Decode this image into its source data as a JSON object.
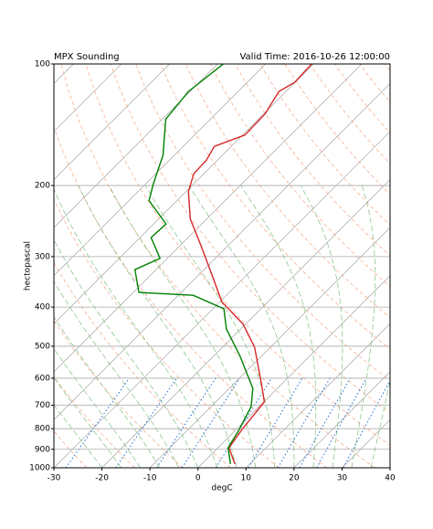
{
  "chart_data": {
    "type": "skewt",
    "title": "MPX Sounding",
    "subtitle": "Valid Time: 2016-10-26 12:00:00",
    "xlabel": "degC",
    "ylabel": "hectopascal",
    "xlim": [
      -30,
      40
    ],
    "xticks": [
      -30,
      -20,
      -10,
      0,
      10,
      20,
      30,
      40
    ],
    "ylim": [
      1000,
      100
    ],
    "yticks": [
      100,
      200,
      300,
      400,
      500,
      600,
      700,
      800,
      900,
      1000
    ],
    "log_y": true,
    "grid": true,
    "series": [
      {
        "color": "#d62728",
        "pressure": [
          979,
          892,
          803,
          687,
          619,
          503,
          441,
          388,
          332,
          283,
          242,
          207,
          187,
          173,
          160,
          150,
          133,
          117,
          111,
          100
        ],
        "values": [
          6.9,
          2.3,
          1.2,
          0.1,
          -4.3,
          -13.3,
          -20.5,
          -29.6,
          -37.4,
          -45.4,
          -53.4,
          -59.5,
          -62.1,
          -62.3,
          -63.5,
          -59.5,
          -59.7,
          -61.5,
          -60.1,
          -60.4
        ]
      },
      {
        "color": "#008000",
        "pressure": [
          979,
          892,
          803,
          705,
          636,
          530,
          453,
          404,
          374,
          368,
          323,
          303,
          269,
          249,
          218,
          199,
          168,
          137,
          117,
          100
        ],
        "values": [
          6.0,
          2.1,
          0.6,
          -1.7,
          -5.1,
          -14.4,
          -23.0,
          -27.7,
          -36.9,
          -48.8,
          -54.4,
          -51.5,
          -57.7,
          -57.4,
          -65.8,
          -68.3,
          -72.4,
          -79.3,
          -80.3,
          -78.8
        ]
      }
    ]
  }
}
